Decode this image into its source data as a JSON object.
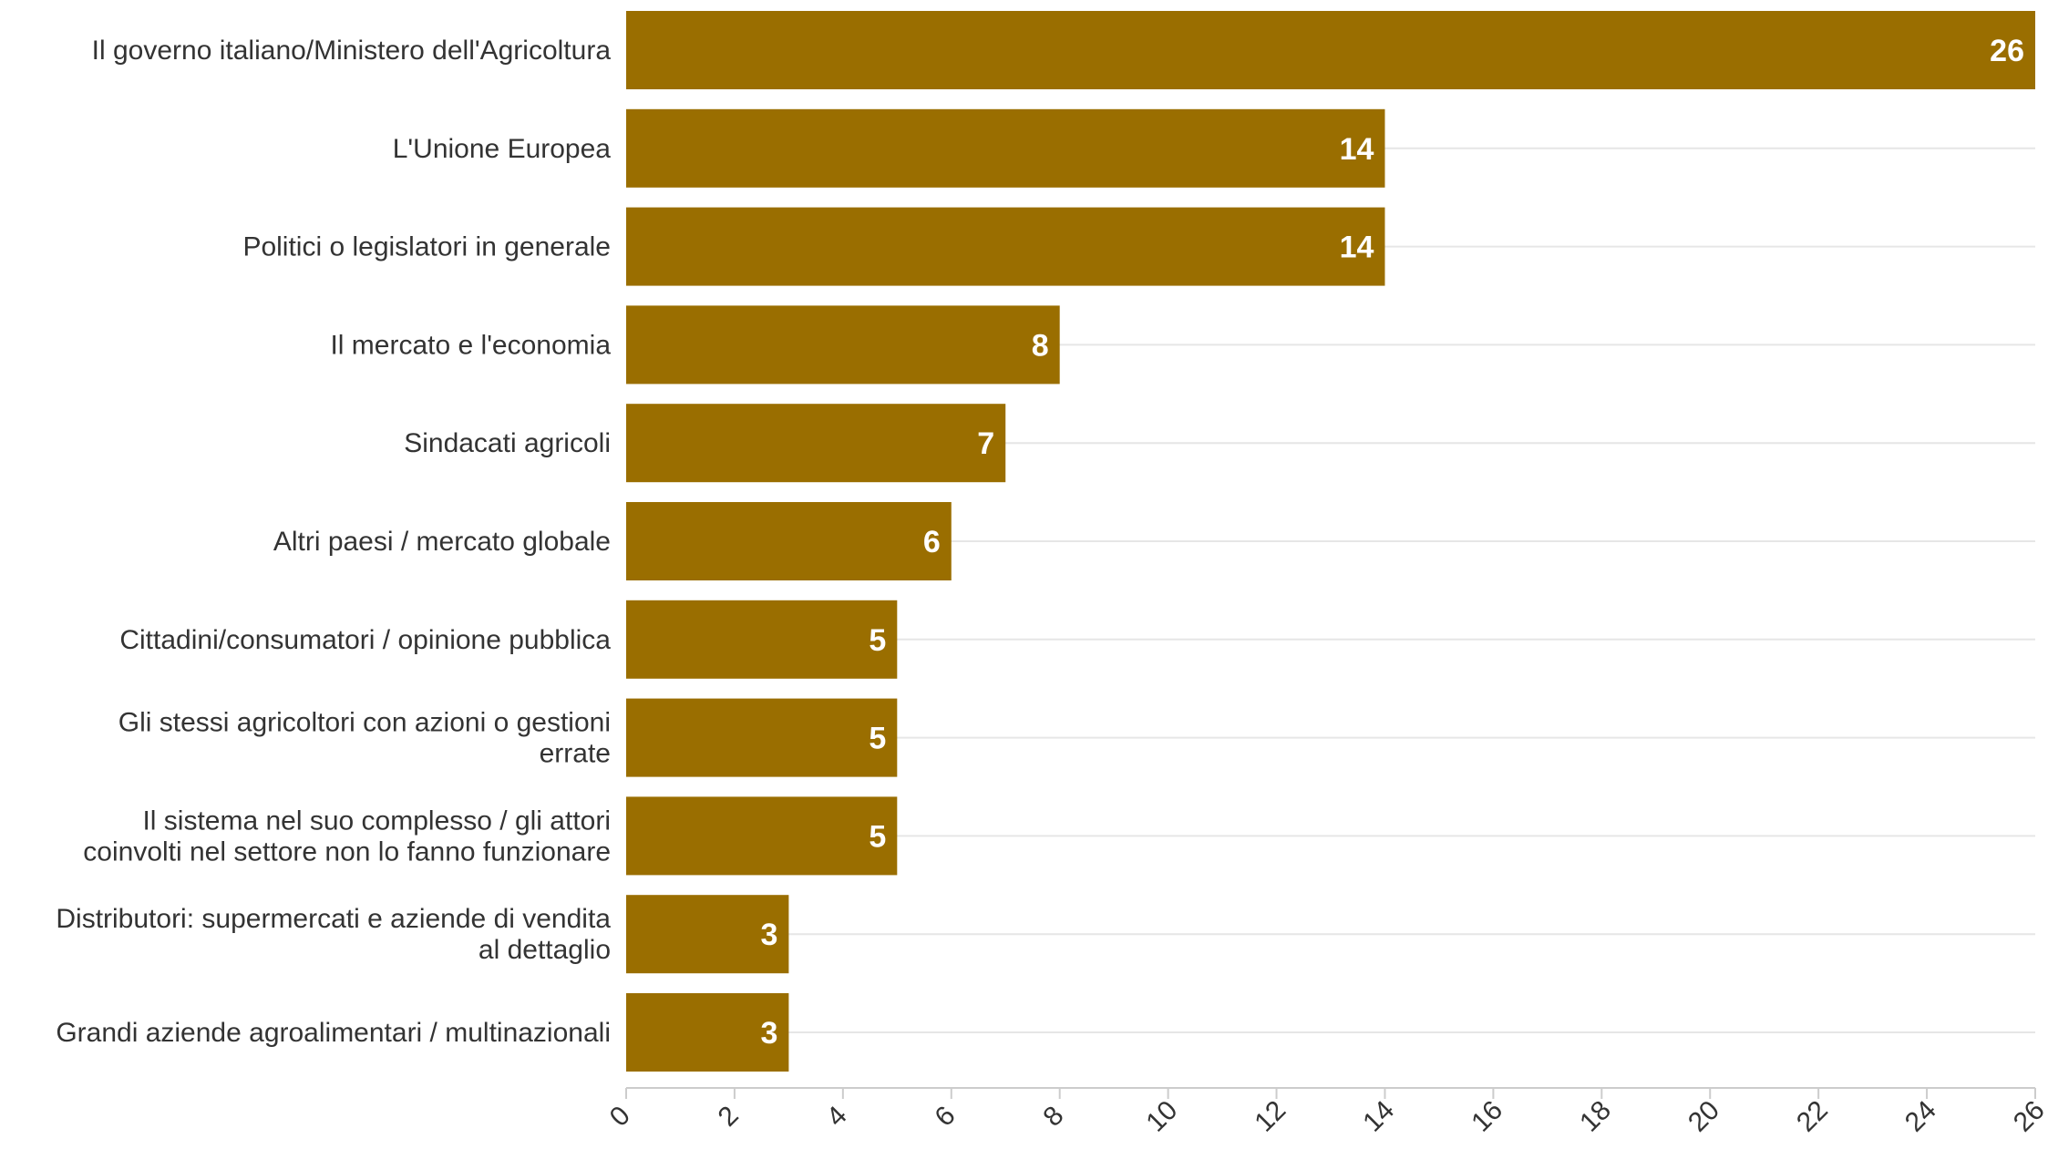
{
  "chart_data": {
    "type": "bar",
    "orientation": "horizontal",
    "categories": [
      [
        "Il governo italiano/Ministero dell'Agricoltura"
      ],
      [
        "L'Unione Europea"
      ],
      [
        "Politici o legislatori in generale"
      ],
      [
        "Il mercato e l'economia"
      ],
      [
        "Sindacati agricoli"
      ],
      [
        "Altri paesi / mercato globale"
      ],
      [
        "Cittadini/consumatori / opinione pubblica"
      ],
      [
        "Gli stessi agricoltori con azioni o gestioni",
        "errate"
      ],
      [
        "Il sistema nel suo complesso / gli attori",
        "coinvolti nel settore non lo fanno funzionare"
      ],
      [
        "Distributori: supermercati e aziende di vendita",
        "al dettaglio"
      ],
      [
        "Grandi aziende agroalimentari / multinazionali"
      ]
    ],
    "values": [
      26,
      14,
      14,
      8,
      7,
      6,
      5,
      5,
      5,
      3,
      3
    ],
    "title": "",
    "xlabel": "",
    "ylabel": "",
    "xlim": [
      0,
      26
    ],
    "ticks": [
      0,
      2,
      4,
      6,
      8,
      10,
      12,
      14,
      16,
      18,
      20,
      22,
      24,
      26
    ],
    "grid": true,
    "data_labels": true,
    "legend": "none",
    "colors": {
      "bar": "#9a6e00",
      "value_text": "#ffffff",
      "grid": "#e6e6e6",
      "text": "#333333"
    }
  }
}
